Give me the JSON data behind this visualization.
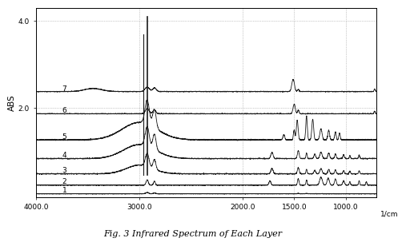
{
  "title": "Fig. 3 Infrared Spectrum of Each Layer",
  "ylabel": "ABS",
  "xlabel": "1/cm",
  "xmin": 4000.0,
  "xmax": 700.0,
  "ymin": -0.05,
  "ymax": 4.3,
  "yticks": [
    2.0,
    4.0
  ],
  "xticks": [
    4000.0,
    3000.0,
    2000.0,
    1500.0,
    1000.0
  ],
  "n_layers": 7,
  "offsets": [
    0.02,
    0.22,
    0.47,
    0.82,
    1.25,
    1.85,
    2.35
  ],
  "background_color": "#ffffff",
  "line_color": "#1a1a1a",
  "grid_color": "#999999"
}
